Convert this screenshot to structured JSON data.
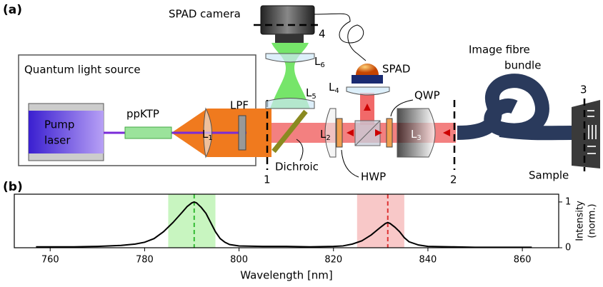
{
  "panel_a": {
    "label": "(a)",
    "source_box": "Quantum light source",
    "pump_laser": [
      "Pump",
      "laser"
    ],
    "crystal": "ppKTP",
    "filter": "LPF",
    "lenses": [
      {
        "name": "L",
        "sub": "1"
      },
      {
        "name": "L",
        "sub": "2"
      },
      {
        "name": "L",
        "sub": "3"
      },
      {
        "name": "L",
        "sub": "4"
      },
      {
        "name": "L",
        "sub": "5"
      },
      {
        "name": "L",
        "sub": "6"
      }
    ],
    "dichroic": "Dichroic",
    "hwp": "HWP",
    "qwp": "QWP",
    "spad": "SPAD",
    "camera": "SPAD camera",
    "fibre": [
      "Image fibre",
      "bundle"
    ],
    "sample": "Sample",
    "planes": [
      "1",
      "2",
      "3",
      "4"
    ]
  },
  "chart_data": {
    "type": "line",
    "panel_label": "(b)",
    "xlabel": "Wavelength [nm]",
    "ylabel": [
      "Intensity",
      "(norm.)"
    ],
    "x": [
      757,
      760,
      765,
      770,
      775,
      778,
      780,
      782,
      784,
      786,
      788,
      789,
      790,
      790.5,
      791,
      792,
      793,
      794,
      795,
      796,
      797,
      798,
      800,
      805,
      810,
      815,
      820,
      822,
      824,
      826,
      828,
      830,
      831,
      831.5,
      832,
      833,
      834,
      835,
      836,
      838,
      840,
      845,
      850,
      855,
      862
    ],
    "values": [
      0.02,
      0.02,
      0.02,
      0.03,
      0.05,
      0.08,
      0.12,
      0.2,
      0.35,
      0.55,
      0.78,
      0.9,
      0.98,
      1.0,
      0.98,
      0.88,
      0.75,
      0.55,
      0.35,
      0.2,
      0.12,
      0.07,
      0.04,
      0.03,
      0.03,
      0.02,
      0.03,
      0.04,
      0.08,
      0.15,
      0.28,
      0.45,
      0.53,
      0.55,
      0.53,
      0.45,
      0.35,
      0.22,
      0.13,
      0.06,
      0.03,
      0.02,
      0.01,
      0.01,
      0.01
    ],
    "color": "#000000",
    "xlim": [
      752.4,
      867.7
    ],
    "ylim": [
      0,
      1.17
    ],
    "xticks": [
      760,
      780,
      800,
      820,
      840,
      860
    ],
    "yticks": [
      0,
      1
    ],
    "y_axis_side": "right",
    "highlights": [
      {
        "range": [
          785,
          795
        ],
        "center": 790.5,
        "band_color": "#c8f5c0",
        "line_color": "#33bb33"
      },
      {
        "range": [
          825,
          835
        ],
        "center": 831.5,
        "band_color": "#f8c8c8",
        "line_color": "#dd3333"
      }
    ]
  }
}
